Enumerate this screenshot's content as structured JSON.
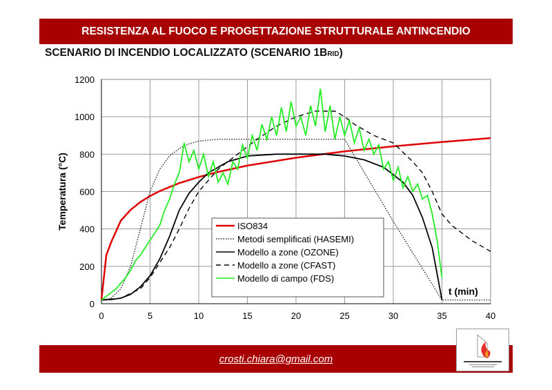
{
  "header": {
    "title": "RESISTENZA AL FUOCO E PROGETTAZIONE STRUTTURALE ANTINCENDIO",
    "subtitle": "SCENARIO DI INCENDIO LOCALIZZATO (SCENARIO 1B",
    "subtitle_sub": "RID",
    "subtitle_end": ")"
  },
  "footer": {
    "email": "crosti.chiara@gmail.com",
    "logo_text": "Commissione per la Sicurezza delle Costruzioni in Acciaio in caso d'Incendio"
  },
  "chart_data": {
    "type": "line",
    "title": "",
    "xlabel": "t (min)",
    "ylabel": "Temperatura (°C)",
    "xlim": [
      0,
      40
    ],
    "ylim": [
      0,
      1200
    ],
    "xticks": [
      0,
      5,
      10,
      15,
      20,
      25,
      30,
      35,
      40
    ],
    "yticks": [
      0,
      200,
      400,
      600,
      800,
      1000,
      1200
    ],
    "grid": true,
    "legend": "center-bottom",
    "series": [
      {
        "name": "ISO834",
        "color": "#e00000",
        "style": "solid",
        "x": [
          0,
          0.5,
          1,
          2,
          3,
          4,
          5,
          6,
          8,
          10,
          12,
          15,
          20,
          25,
          30,
          35,
          40
        ],
        "y": [
          20,
          260,
          329,
          445,
          502,
          544,
          576,
          603,
          645,
          678,
          705,
          739,
          781,
          815,
          842,
          865,
          886
        ]
      },
      {
        "name": "Metodi semplificati (HASEMI)",
        "color": "#222222",
        "style": "dotted",
        "x": [
          0,
          1,
          2,
          3,
          4,
          5,
          6,
          7,
          8,
          9,
          10,
          12,
          15,
          20,
          25,
          30,
          35,
          40
        ],
        "y": [
          20,
          30,
          80,
          200,
          400,
          600,
          720,
          790,
          830,
          855,
          870,
          880,
          880,
          880,
          880,
          440,
          20,
          20
        ]
      },
      {
        "name": "Modello a zone (OZONE)",
        "color": "#000000",
        "style": "solid",
        "x": [
          0,
          1,
          2,
          3,
          4,
          5,
          6,
          7,
          8,
          9,
          10,
          11,
          13,
          15,
          18,
          21,
          23,
          25,
          27,
          29,
          31,
          32,
          33,
          34,
          34.5,
          35
        ],
        "y": [
          20,
          22,
          30,
          50,
          90,
          150,
          240,
          360,
          500,
          590,
          650,
          700,
          760,
          790,
          800,
          800,
          800,
          790,
          770,
          730,
          650,
          580,
          460,
          300,
          160,
          20
        ]
      },
      {
        "name": "Modello a zone (CFAST)",
        "color": "#000000",
        "style": "dashed",
        "x": [
          0,
          2,
          4,
          5,
          6,
          7,
          8,
          9,
          10,
          12,
          14,
          16,
          18,
          20,
          22,
          24,
          25,
          26,
          28,
          30,
          32,
          33,
          34,
          35,
          36,
          38,
          40
        ],
        "y": [
          20,
          30,
          80,
          140,
          220,
          300,
          400,
          510,
          600,
          720,
          800,
          880,
          950,
          1000,
          1030,
          1030,
          1000,
          960,
          900,
          860,
          760,
          700,
          600,
          480,
          420,
          340,
          280
        ]
      },
      {
        "name": "Modello di campo (FDS)",
        "color": "#22ee22",
        "style": "solid",
        "x": [
          0,
          0.5,
          1,
          1.5,
          2,
          2.5,
          3,
          3.5,
          4,
          4.5,
          5,
          5.5,
          6,
          6.5,
          7,
          7.5,
          8,
          8.5,
          9,
          9.5,
          10,
          10.5,
          11,
          11.5,
          12,
          12.5,
          13,
          13.5,
          14,
          14.5,
          15,
          15.5,
          16,
          16.5,
          17,
          17.5,
          18,
          18.5,
          19,
          19.5,
          20,
          20.5,
          21,
          21.5,
          22,
          22.5,
          23,
          23.5,
          24,
          24.5,
          25,
          25.5,
          26,
          26.5,
          27,
          27.5,
          28,
          28.5,
          29,
          29.5,
          30,
          30.5,
          31,
          31.5,
          32,
          32.5,
          33,
          33.5,
          34,
          34.5,
          35
        ],
        "y": [
          20,
          40,
          60,
          80,
          110,
          140,
          180,
          230,
          260,
          300,
          340,
          380,
          420,
          500,
          560,
          640,
          700,
          860,
          760,
          820,
          720,
          800,
          680,
          760,
          650,
          700,
          640,
          760,
          720,
          850,
          780,
          900,
          820,
          960,
          880,
          1000,
          900,
          1050,
          920,
          1080,
          950,
          1000,
          900,
          1060,
          950,
          1150,
          920,
          1060,
          880,
          1000,
          900,
          980,
          860,
          940,
          820,
          880,
          800,
          850,
          720,
          760,
          660,
          730,
          620,
          680,
          600,
          640,
          560,
          580,
          480,
          340,
          140
        ]
      }
    ]
  }
}
